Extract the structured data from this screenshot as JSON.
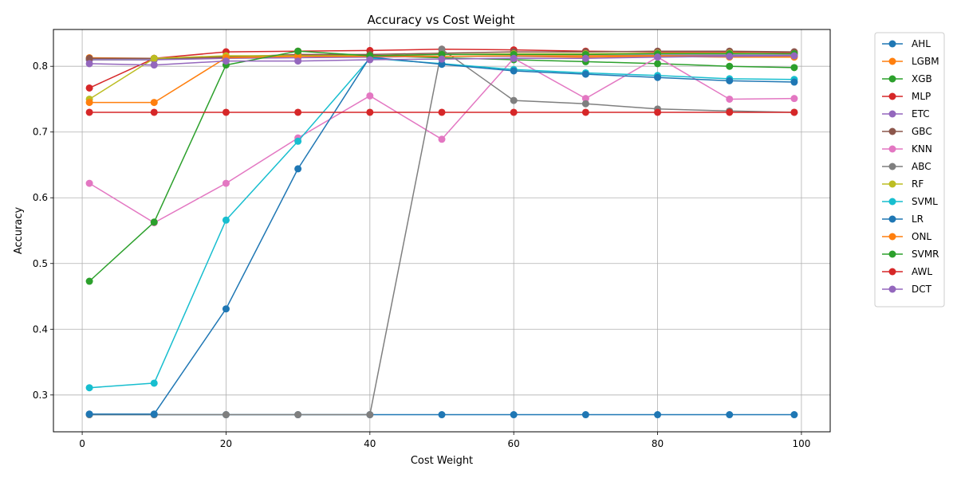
{
  "chart_data": {
    "type": "line",
    "title": "Accuracy vs Cost Weight",
    "xlabel": "Cost Weight",
    "ylabel": "Accuracy",
    "xlim": [
      -4,
      104
    ],
    "ylim": [
      0.244,
      0.856
    ],
    "xticks": [
      0,
      20,
      40,
      60,
      80,
      100
    ],
    "yticks": [
      0.3,
      0.4,
      0.5,
      0.6,
      0.7,
      0.8
    ],
    "grid": true,
    "legend_position": "outside-right-top",
    "x": [
      1,
      10,
      20,
      30,
      40,
      50,
      60,
      70,
      80,
      90,
      99
    ],
    "series": [
      {
        "name": "AHL",
        "color": "#1f77b4",
        "values": [
          0.27,
          0.27,
          0.27,
          0.27,
          0.27,
          0.27,
          0.27,
          0.27,
          0.27,
          0.27,
          0.27
        ]
      },
      {
        "name": "LGBM",
        "color": "#ff7f0e",
        "values": [
          0.813,
          0.812,
          0.813,
          0.815,
          0.816,
          0.815,
          0.815,
          0.814,
          0.815,
          0.814,
          0.814
        ]
      },
      {
        "name": "XGB",
        "color": "#2ca02c",
        "values": [
          0.81,
          0.81,
          0.815,
          0.817,
          0.816,
          0.813,
          0.81,
          0.807,
          0.804,
          0.8,
          0.798
        ]
      },
      {
        "name": "MLP",
        "color": "#d62728",
        "values": [
          0.767,
          0.812,
          0.822,
          0.823,
          0.824,
          0.826,
          0.825,
          0.823,
          0.822,
          0.822,
          0.821
        ]
      },
      {
        "name": "ETC",
        "color": "#9467bd",
        "values": [
          0.81,
          0.81,
          0.812,
          0.813,
          0.814,
          0.815,
          0.815,
          0.816,
          0.817,
          0.817,
          0.817
        ]
      },
      {
        "name": "GBC",
        "color": "#8c564b",
        "values": [
          0.812,
          0.812,
          0.814,
          0.818,
          0.818,
          0.82,
          0.822,
          0.822,
          0.823,
          0.823,
          0.822
        ]
      },
      {
        "name": "KNN",
        "color": "#e377c2",
        "values": [
          0.622,
          0.562,
          0.622,
          0.691,
          0.755,
          0.689,
          0.812,
          0.751,
          0.814,
          0.75,
          0.751
        ]
      },
      {
        "name": "ABC",
        "color": "#7f7f7f",
        "values": [
          0.27,
          0.27,
          0.27,
          0.27,
          0.27,
          0.826,
          0.748,
          0.743,
          0.735,
          0.732,
          0.73
        ]
      },
      {
        "name": "RF",
        "color": "#bcbd22",
        "values": [
          0.75,
          0.812,
          0.816,
          0.816,
          0.816,
          0.818,
          0.819,
          0.819,
          0.82,
          0.82,
          0.819
        ]
      },
      {
        "name": "SVML",
        "color": "#17becf",
        "values": [
          0.311,
          0.318,
          0.566,
          0.686,
          0.812,
          0.804,
          0.795,
          0.79,
          0.786,
          0.781,
          0.78
        ]
      },
      {
        "name": "LR",
        "color": "#1f77b4",
        "values": [
          0.271,
          0.271,
          0.431,
          0.644,
          0.814,
          0.803,
          0.793,
          0.788,
          0.783,
          0.778,
          0.776
        ]
      },
      {
        "name": "ONL",
        "color": "#ff7f0e",
        "values": [
          0.745,
          0.745,
          0.813,
          0.815,
          0.815,
          0.815,
          0.816,
          0.816,
          0.816,
          0.815,
          0.815
        ]
      },
      {
        "name": "SVMR",
        "color": "#2ca02c",
        "values": [
          0.473,
          0.563,
          0.802,
          0.823,
          0.816,
          0.818,
          0.818,
          0.818,
          0.819,
          0.819,
          0.819
        ]
      },
      {
        "name": "AWL",
        "color": "#d62728",
        "values": [
          0.73,
          0.73,
          0.73,
          0.73,
          0.73,
          0.73,
          0.73,
          0.73,
          0.73,
          0.73,
          0.73
        ]
      },
      {
        "name": "DCT",
        "color": "#9467bd",
        "values": [
          0.804,
          0.802,
          0.808,
          0.808,
          0.81,
          0.811,
          0.812,
          0.812,
          0.814,
          0.815,
          0.816
        ]
      }
    ]
  }
}
